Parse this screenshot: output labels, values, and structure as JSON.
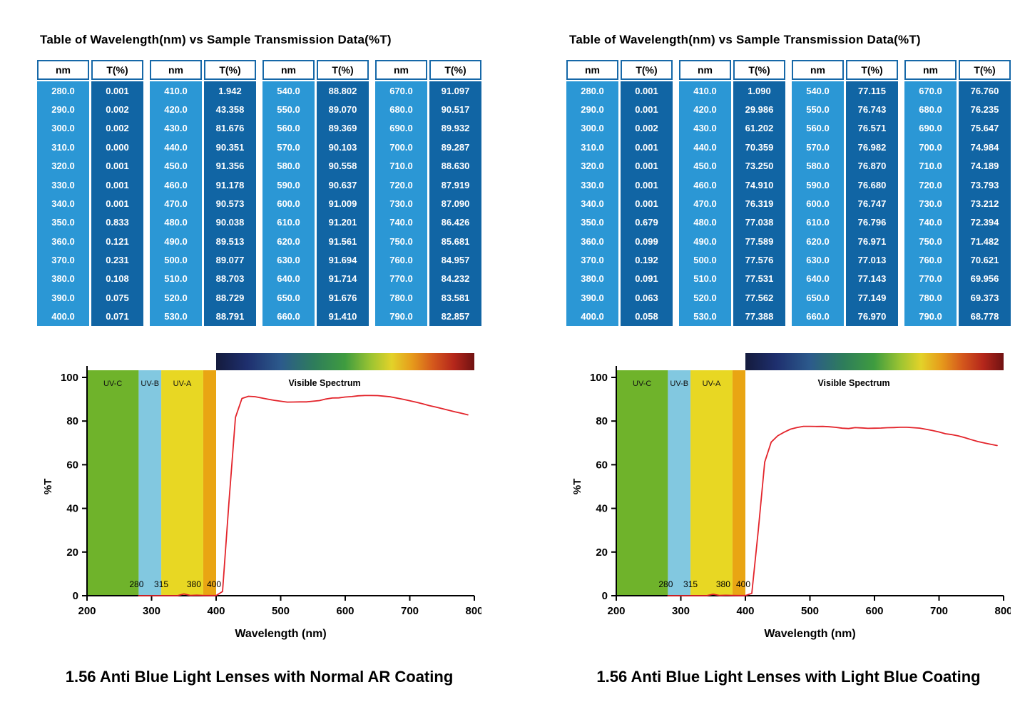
{
  "panels": [
    {
      "table_title": "Table of Wavelength(nm) vs Sample Transmission Data(%T)",
      "caption": "1.56 Anti Blue Light Lenses with Normal AR Coating",
      "table": {
        "nm_header": "nm",
        "t_header": "T(%)",
        "groups": [
          {
            "nm": [
              "280.0",
              "290.0",
              "300.0",
              "310.0",
              "320.0",
              "330.0",
              "340.0",
              "350.0",
              "360.0",
              "370.0",
              "380.0",
              "390.0",
              "400.0"
            ],
            "t": [
              "0.001",
              "0.002",
              "0.002",
              "0.000",
              "0.001",
              "0.001",
              "0.001",
              "0.833",
              "0.121",
              "0.231",
              "0.108",
              "0.075",
              "0.071"
            ]
          },
          {
            "nm": [
              "410.0",
              "420.0",
              "430.0",
              "440.0",
              "450.0",
              "460.0",
              "470.0",
              "480.0",
              "490.0",
              "500.0",
              "510.0",
              "520.0",
              "530.0"
            ],
            "t": [
              "1.942",
              "43.358",
              "81.676",
              "90.351",
              "91.356",
              "91.178",
              "90.573",
              "90.038",
              "89.513",
              "89.077",
              "88.703",
              "88.729",
              "88.791"
            ]
          },
          {
            "nm": [
              "540.0",
              "550.0",
              "560.0",
              "570.0",
              "580.0",
              "590.0",
              "600.0",
              "610.0",
              "620.0",
              "630.0",
              "640.0",
              "650.0",
              "660.0"
            ],
            "t": [
              "88.802",
              "89.070",
              "89.369",
              "90.103",
              "90.558",
              "90.637",
              "91.009",
              "91.201",
              "91.561",
              "91.694",
              "91.714",
              "91.676",
              "91.410"
            ]
          },
          {
            "nm": [
              "670.0",
              "680.0",
              "690.0",
              "700.0",
              "710.0",
              "720.0",
              "730.0",
              "740.0",
              "750.0",
              "760.0",
              "770.0",
              "780.0",
              "790.0"
            ],
            "t": [
              "91.097",
              "90.517",
              "89.932",
              "89.287",
              "88.630",
              "87.919",
              "87.090",
              "86.426",
              "85.681",
              "84.957",
              "84.232",
              "83.581",
              "82.857"
            ]
          }
        ]
      }
    },
    {
      "table_title": "Table of Wavelength(nm) vs Sample Transmission Data(%T)",
      "caption": "1.56 Anti Blue Light Lenses with Light Blue Coating",
      "table": {
        "nm_header": "nm",
        "t_header": "T(%)",
        "groups": [
          {
            "nm": [
              "280.0",
              "290.0",
              "300.0",
              "310.0",
              "320.0",
              "330.0",
              "340.0",
              "350.0",
              "360.0",
              "370.0",
              "380.0",
              "390.0",
              "400.0"
            ],
            "t": [
              "0.001",
              "0.001",
              "0.002",
              "0.001",
              "0.001",
              "0.001",
              "0.001",
              "0.679",
              "0.099",
              "0.192",
              "0.091",
              "0.063",
              "0.058"
            ]
          },
          {
            "nm": [
              "410.0",
              "420.0",
              "430.0",
              "440.0",
              "450.0",
              "460.0",
              "470.0",
              "480.0",
              "490.0",
              "500.0",
              "510.0",
              "520.0",
              "530.0"
            ],
            "t": [
              "1.090",
              "29.986",
              "61.202",
              "70.359",
              "73.250",
              "74.910",
              "76.319",
              "77.038",
              "77.589",
              "77.576",
              "77.531",
              "77.562",
              "77.388"
            ]
          },
          {
            "nm": [
              "540.0",
              "550.0",
              "560.0",
              "570.0",
              "580.0",
              "590.0",
              "600.0",
              "610.0",
              "620.0",
              "630.0",
              "640.0",
              "650.0",
              "660.0"
            ],
            "t": [
              "77.115",
              "76.743",
              "76.571",
              "76.982",
              "76.870",
              "76.680",
              "76.747",
              "76.796",
              "76.971",
              "77.013",
              "77.143",
              "77.149",
              "76.970"
            ]
          },
          {
            "nm": [
              "670.0",
              "680.0",
              "690.0",
              "700.0",
              "710.0",
              "720.0",
              "730.0",
              "740.0",
              "750.0",
              "760.0",
              "770.0",
              "780.0",
              "790.0"
            ],
            "t": [
              "76.760",
              "76.235",
              "75.647",
              "74.984",
              "74.189",
              "73.793",
              "73.212",
              "72.394",
              "71.482",
              "70.621",
              "69.956",
              "69.373",
              "68.778"
            ]
          }
        ]
      }
    }
  ],
  "chart_data": [
    {
      "type": "line",
      "title": "1.56 Anti Blue Light Lenses with Normal AR Coating",
      "xlabel": "Wavelength (nm)",
      "ylabel": "%T",
      "xlim": [
        200,
        800
      ],
      "ylim": [
        0,
        100
      ],
      "x_ticks": [
        200,
        300,
        400,
        500,
        600,
        700,
        800
      ],
      "y_ticks": [
        0,
        20,
        40,
        60,
        80,
        100
      ],
      "grid": false,
      "x": [
        280,
        290,
        300,
        310,
        320,
        330,
        340,
        350,
        360,
        370,
        380,
        390,
        400,
        410,
        420,
        430,
        440,
        450,
        460,
        470,
        480,
        490,
        500,
        510,
        520,
        530,
        540,
        550,
        560,
        570,
        580,
        590,
        600,
        610,
        620,
        630,
        640,
        650,
        660,
        670,
        680,
        690,
        700,
        710,
        720,
        730,
        740,
        750,
        760,
        770,
        780,
        790
      ],
      "series": [
        {
          "name": "Sample Transmission",
          "color": "#e3242b",
          "values": [
            0.001,
            0.002,
            0.002,
            0.0,
            0.001,
            0.001,
            0.001,
            0.833,
            0.121,
            0.231,
            0.108,
            0.075,
            0.071,
            1.942,
            43.358,
            81.676,
            90.351,
            91.356,
            91.178,
            90.573,
            90.038,
            89.513,
            89.077,
            88.703,
            88.729,
            88.791,
            88.802,
            89.07,
            89.369,
            90.103,
            90.558,
            90.637,
            91.009,
            91.201,
            91.561,
            91.694,
            91.714,
            91.676,
            91.41,
            91.097,
            90.517,
            89.932,
            89.287,
            88.63,
            87.919,
            87.09,
            86.426,
            85.681,
            84.957,
            84.232,
            83.581,
            82.857
          ]
        }
      ],
      "uv_bands": [
        {
          "label": "UV-C",
          "from": 200,
          "to": 280,
          "color": "#6fb32b"
        },
        {
          "label": "UV-B",
          "from": 280,
          "to": 315,
          "color": "#82c8e0"
        },
        {
          "label": "UV-A",
          "from": 315,
          "to": 380,
          "color": "#e8d723"
        },
        {
          "label": "",
          "from": 380,
          "to": 400,
          "color": "#e9a513"
        }
      ],
      "band_edge_labels": [
        {
          "text": "280",
          "x": 280,
          "dx": -3
        },
        {
          "text": "315",
          "x": 315,
          "dx": 0
        },
        {
          "text": "380",
          "x": 380,
          "dx": -13
        },
        {
          "text": "400",
          "x": 400,
          "dx": -3
        }
      ],
      "visible_spectrum": {
        "label": "Visible Spectrum",
        "from": 400,
        "to": 800,
        "gradient": [
          {
            "offset": "0%",
            "color": "#141b3d"
          },
          {
            "offset": "12%",
            "color": "#1e2f6e"
          },
          {
            "offset": "25%",
            "color": "#2c5a8c"
          },
          {
            "offset": "38%",
            "color": "#2e7d5b"
          },
          {
            "offset": "50%",
            "color": "#3f9c3f"
          },
          {
            "offset": "60%",
            "color": "#9cc432"
          },
          {
            "offset": "68%",
            "color": "#e3d229"
          },
          {
            "offset": "76%",
            "color": "#e69a1b"
          },
          {
            "offset": "84%",
            "color": "#d4581c"
          },
          {
            "offset": "92%",
            "color": "#b5271b"
          },
          {
            "offset": "100%",
            "color": "#701212"
          }
        ]
      }
    },
    {
      "type": "line",
      "title": "1.56 Anti Blue Light Lenses with Light Blue Coating",
      "xlabel": "Wavelength (nm)",
      "ylabel": "%T",
      "xlim": [
        200,
        800
      ],
      "ylim": [
        0,
        100
      ],
      "x_ticks": [
        200,
        300,
        400,
        500,
        600,
        700,
        800
      ],
      "y_ticks": [
        0,
        20,
        40,
        60,
        80,
        100
      ],
      "grid": false,
      "x": [
        280,
        290,
        300,
        310,
        320,
        330,
        340,
        350,
        360,
        370,
        380,
        390,
        400,
        410,
        420,
        430,
        440,
        450,
        460,
        470,
        480,
        490,
        500,
        510,
        520,
        530,
        540,
        550,
        560,
        570,
        580,
        590,
        600,
        610,
        620,
        630,
        640,
        650,
        660,
        670,
        680,
        690,
        700,
        710,
        720,
        730,
        740,
        750,
        760,
        770,
        780,
        790
      ],
      "series": [
        {
          "name": "Sample Transmission",
          "color": "#e3242b",
          "values": [
            0.001,
            0.001,
            0.002,
            0.001,
            0.001,
            0.001,
            0.001,
            0.679,
            0.099,
            0.192,
            0.091,
            0.063,
            0.058,
            1.09,
            29.986,
            61.202,
            70.359,
            73.25,
            74.91,
            76.319,
            77.038,
            77.589,
            77.576,
            77.531,
            77.562,
            77.388,
            77.115,
            76.743,
            76.571,
            76.982,
            76.87,
            76.68,
            76.747,
            76.796,
            76.971,
            77.013,
            77.143,
            77.149,
            76.97,
            76.76,
            76.235,
            75.647,
            74.984,
            74.189,
            73.793,
            73.212,
            72.394,
            71.482,
            70.621,
            69.956,
            69.373,
            68.778
          ]
        }
      ],
      "uv_bands": [
        {
          "label": "UV-C",
          "from": 200,
          "to": 280,
          "color": "#6fb32b"
        },
        {
          "label": "UV-B",
          "from": 280,
          "to": 315,
          "color": "#82c8e0"
        },
        {
          "label": "UV-A",
          "from": 315,
          "to": 380,
          "color": "#e8d723"
        },
        {
          "label": "",
          "from": 380,
          "to": 400,
          "color": "#e9a513"
        }
      ],
      "band_edge_labels": [
        {
          "text": "280",
          "x": 280,
          "dx": -3
        },
        {
          "text": "315",
          "x": 315,
          "dx": 0
        },
        {
          "text": "380",
          "x": 380,
          "dx": -13
        },
        {
          "text": "400",
          "x": 400,
          "dx": -3
        }
      ],
      "visible_spectrum": {
        "label": "Visible Spectrum",
        "from": 400,
        "to": 800,
        "gradient": [
          {
            "offset": "0%",
            "color": "#141b3d"
          },
          {
            "offset": "12%",
            "color": "#1e2f6e"
          },
          {
            "offset": "25%",
            "color": "#2c5a8c"
          },
          {
            "offset": "38%",
            "color": "#2e7d5b"
          },
          {
            "offset": "50%",
            "color": "#3f9c3f"
          },
          {
            "offset": "60%",
            "color": "#9cc432"
          },
          {
            "offset": "68%",
            "color": "#e3d229"
          },
          {
            "offset": "76%",
            "color": "#e69a1b"
          },
          {
            "offset": "84%",
            "color": "#d4581c"
          },
          {
            "offset": "92%",
            "color": "#b5271b"
          },
          {
            "offset": "100%",
            "color": "#701212"
          }
        ]
      }
    }
  ],
  "colors": {
    "table_nm_column": "#2b97d5",
    "table_t_column": "#1165a4",
    "table_header_border": "#1668a8",
    "curve": "#e3242b"
  }
}
